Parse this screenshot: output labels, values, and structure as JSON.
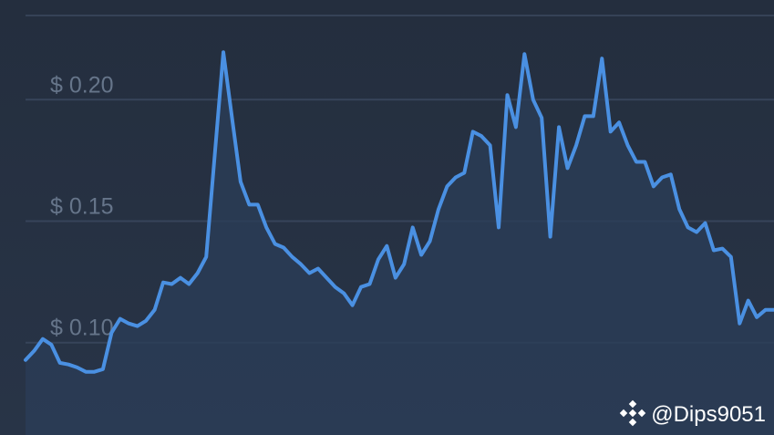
{
  "chart_data": {
    "type": "line",
    "values": [
      0.0929,
      0.0966,
      0.1015,
      0.0992,
      0.0917,
      0.091,
      0.0898,
      0.088,
      0.088,
      0.0891,
      0.1041,
      0.1098,
      0.1079,
      0.1068,
      0.109,
      0.1135,
      0.1248,
      0.1241,
      0.1267,
      0.1241,
      0.1286,
      0.1353,
      0.1774,
      0.2195,
      0.1925,
      0.1662,
      0.1568,
      0.1568,
      0.1474,
      0.1406,
      0.1391,
      0.1353,
      0.1323,
      0.1286,
      0.1305,
      0.1267,
      0.1229,
      0.1203,
      0.1154,
      0.1229,
      0.1241,
      0.1342,
      0.1398,
      0.1267,
      0.1323,
      0.1474,
      0.1361,
      0.1417,
      0.1549,
      0.1643,
      0.168,
      0.1699,
      0.1868,
      0.185,
      0.1812,
      0.1474,
      0.2019,
      0.1887,
      0.2188,
      0.2,
      0.1925,
      0.1436,
      0.1887,
      0.1718,
      0.1812,
      0.1932,
      0.1932,
      0.2169,
      0.1868,
      0.1906,
      0.1812,
      0.1744,
      0.1744,
      0.1643,
      0.168,
      0.1692,
      0.1549,
      0.1474,
      0.1455,
      0.1492,
      0.138,
      0.1387,
      0.1353,
      0.1079,
      0.1173,
      0.1105,
      0.1135,
      0.1135
    ],
    "color": "#4a90e2",
    "ylim": [
      0.062,
      0.241
    ],
    "yticks": [
      {
        "value": 0.1,
        "label": "$ 0.10"
      },
      {
        "value": 0.15,
        "label": "$ 0.15"
      },
      {
        "value": 0.2,
        "label": "$ 0.20"
      }
    ],
    "grid": true,
    "watermark": "@Dips9051"
  }
}
